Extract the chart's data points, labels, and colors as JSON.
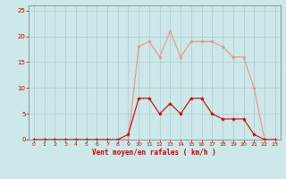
{
  "x": [
    0,
    1,
    2,
    3,
    4,
    5,
    6,
    7,
    8,
    9,
    10,
    11,
    12,
    13,
    14,
    15,
    16,
    17,
    18,
    19,
    20,
    21,
    22,
    23
  ],
  "rafales": [
    0,
    0,
    0,
    0,
    0,
    0,
    0,
    0,
    0,
    0,
    18,
    19,
    16,
    21,
    16,
    19,
    19,
    19,
    18,
    16,
    16,
    10,
    0,
    0
  ],
  "moyen": [
    0,
    0,
    0,
    0,
    0,
    0,
    0,
    0,
    0,
    1,
    8,
    8,
    5,
    7,
    5,
    8,
    8,
    5,
    4,
    4,
    4,
    1,
    0,
    0
  ],
  "line_color_rafales": "#f09090",
  "line_color_moyen": "#cc0000",
  "marker_color_rafales": "#f09090",
  "marker_color_moyen": "#cc0000",
  "bg_color": "#cce8e8",
  "grid_color": "#aacccc",
  "xlabel": "Vent moyen/en rafales ( km/h )",
  "xlabel_color": "#cc0000",
  "tick_color": "#cc0000",
  "axis_color": "#888888",
  "ylim": [
    0,
    26
  ],
  "xlim": [
    -0.5,
    23.5
  ],
  "yticks": [
    0,
    5,
    10,
    15,
    20,
    25
  ],
  "xticks": [
    0,
    1,
    2,
    3,
    4,
    5,
    6,
    7,
    8,
    9,
    10,
    11,
    12,
    13,
    14,
    15,
    16,
    17,
    18,
    19,
    20,
    21,
    22,
    23
  ]
}
